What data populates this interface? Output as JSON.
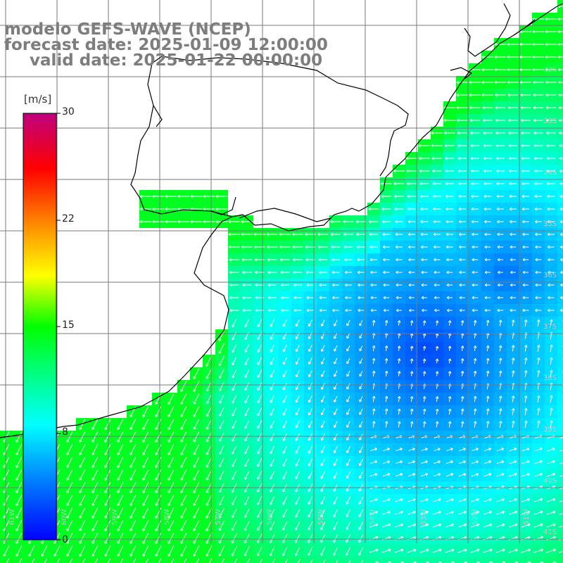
{
  "title": {
    "line1": "modelo GEFS-WAVE (NCEP)",
    "line2": "forecast date: 2025-01-09 12:00:00",
    "line3": "valid date: 2025-01-22 00:00:00"
  },
  "colorbar": {
    "unit": "[m/s]",
    "ticks": [
      "30",
      "22",
      "15",
      "8",
      "0"
    ],
    "range": [
      0,
      30
    ],
    "colors": [
      "#0000ff",
      "#0080ff",
      "#00ffff",
      "#00ff00",
      "#ffff00",
      "#ff8000",
      "#ff0000",
      "#c0007f"
    ]
  },
  "map": {
    "lat_labels": [
      "32S",
      "33S",
      "34S",
      "35S",
      "36S",
      "37S",
      "38S",
      "39S",
      "40S",
      "41S"
    ],
    "lon_labels": [
      "61W",
      "60W",
      "59W",
      "58W",
      "57W",
      "56W",
      "55W",
      "54W",
      "53W",
      "52W",
      "51W"
    ],
    "grid": true,
    "field": "wind speed with direction arrows",
    "arrow_color": "#ffffff",
    "coast_color": "#000000",
    "grid_color": "#808080"
  }
}
